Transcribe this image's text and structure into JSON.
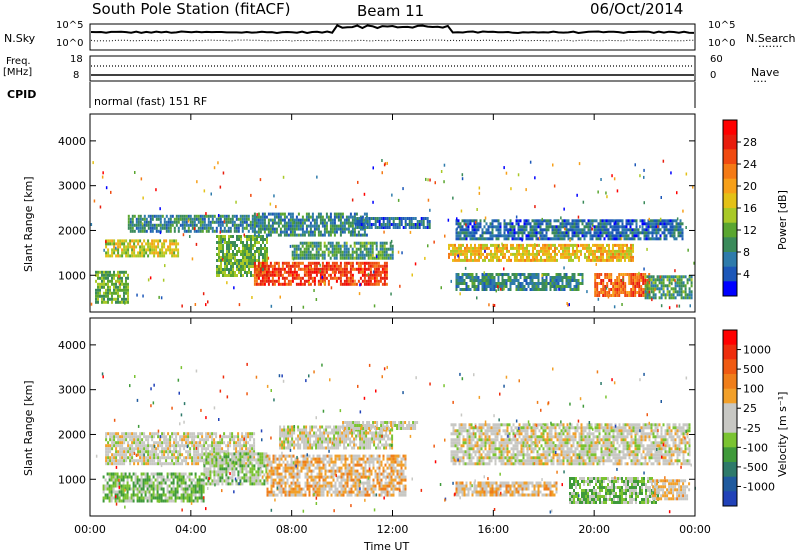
{
  "header": {
    "station": "South Pole Station (fitACF)",
    "beam": "Beam 11",
    "date": "06/Oct/2014"
  },
  "top_panels": {
    "nsky_label": "N.Sky",
    "nsearch_label": "N.Search",
    "nsearch_marker": "·······",
    "freq_label_line1": "Freq.",
    "freq_label_line2": "[MHz]",
    "cpid_label": "CPID",
    "nave_label": "Nave",
    "nave_marker": "····",
    "cpid_text": "normal (fast) 151 RF",
    "left_ticks_noise": [
      "10^5",
      "10^0"
    ],
    "right_ticks_noise": [
      "10^5",
      "10^0"
    ],
    "left_ticks_freq": [
      "18",
      "8"
    ],
    "right_ticks_nave": [
      "60",
      "0"
    ]
  },
  "chart_data": [
    {
      "type": "heatmap",
      "name": "power",
      "xlabel": "",
      "ylabel": "Slant Range [km]",
      "xlim": [
        0,
        24
      ],
      "ylim": [
        180,
        4600
      ],
      "y_ticks": [
        "1000",
        "2000",
        "3000",
        "4000"
      ],
      "colorbar": {
        "label": "Power [dB]",
        "ticks": [
          "4",
          "8",
          "12",
          "16",
          "20",
          "24",
          "28"
        ],
        "colors": [
          "#0000ff",
          "#1c57b8",
          "#2e7bab",
          "#3a8a5a",
          "#5aa630",
          "#a9c927",
          "#e3c117",
          "#f7a019",
          "#f47a15",
          "#f04a10",
          "#e81d0d",
          "#ff0000"
        ]
      },
      "bands": [
        {
          "t0": 0.6,
          "t1": 3.5,
          "r0": 1450,
          "r1": 1800,
          "value": 16
        },
        {
          "t0": 1.5,
          "t1": 6.5,
          "r0": 2000,
          "r1": 2350,
          "value": 8
        },
        {
          "t0": 5.0,
          "t1": 7.0,
          "r0": 1000,
          "r1": 1900,
          "value": 12
        },
        {
          "t0": 6.5,
          "t1": 11.8,
          "r0": 800,
          "r1": 1300,
          "value": 26
        },
        {
          "t0": 6.5,
          "t1": 11.0,
          "r0": 1900,
          "r1": 2400,
          "value": 8
        },
        {
          "t0": 8.0,
          "t1": 12.0,
          "r0": 1400,
          "r1": 1750,
          "value": 10
        },
        {
          "t0": 10.5,
          "t1": 13.5,
          "r0": 2050,
          "r1": 2300,
          "value": 6
        },
        {
          "t0": 14.2,
          "t1": 21.5,
          "r0": 1300,
          "r1": 1700,
          "value": 18
        },
        {
          "t0": 14.5,
          "t1": 23.5,
          "r0": 1800,
          "r1": 2250,
          "value": 6
        },
        {
          "t0": 14.5,
          "t1": 19.5,
          "r0": 650,
          "r1": 1050,
          "value": 8
        },
        {
          "t0": 20.0,
          "t1": 22.2,
          "r0": 550,
          "r1": 1050,
          "value": 24
        },
        {
          "t0": 22.0,
          "t1": 23.9,
          "r0": 500,
          "r1": 1000,
          "value": 10
        },
        {
          "t0": 0.2,
          "t1": 1.5,
          "r0": 400,
          "r1": 1100,
          "value": 12
        }
      ]
    },
    {
      "type": "heatmap",
      "name": "velocity",
      "xlabel": "Time UT",
      "ylabel": "Slant Range [km]",
      "xlim": [
        0,
        24
      ],
      "ylim": [
        180,
        4600
      ],
      "x_ticks": [
        "00:00",
        "04:00",
        "08:00",
        "12:00",
        "16:00",
        "20:00",
        "00:00"
      ],
      "y_ticks": [
        "1000",
        "2000",
        "3000",
        "4000"
      ],
      "colorbar": {
        "label": "Velocity [m s⁻¹]",
        "ticks": [
          "1000",
          "500",
          "100",
          "25",
          "-25",
          "-100",
          "-500",
          "-1000"
        ],
        "colors": [
          "#2142b8",
          "#1f5a9e",
          "#2e7a6a",
          "#3f9a3a",
          "#7ac331",
          "#c8c8c4",
          "#c8c8c4",
          "#f2a02a",
          "#ef7e1a",
          "#ef5a12",
          "#ee2d0c",
          "#ff0000"
        ]
      },
      "bands": [
        {
          "t0": 0.6,
          "t1": 6.5,
          "r0": 1350,
          "r1": 2050,
          "value": 0
        },
        {
          "t0": 0.5,
          "t1": 4.5,
          "r0": 500,
          "r1": 1150,
          "value": -300
        },
        {
          "t0": 4.5,
          "t1": 7.0,
          "r0": 900,
          "r1": 1600,
          "value": -200
        },
        {
          "t0": 7.0,
          "t1": 12.5,
          "r0": 650,
          "r1": 1550,
          "value": 200
        },
        {
          "t0": 7.5,
          "t1": 12.0,
          "r0": 1700,
          "r1": 2200,
          "value": 0
        },
        {
          "t0": 10.0,
          "t1": 13.0,
          "r0": 2100,
          "r1": 2300,
          "value": 0
        },
        {
          "t0": 14.3,
          "t1": 23.8,
          "r0": 1350,
          "r1": 2250,
          "value": 0
        },
        {
          "t0": 14.5,
          "t1": 18.5,
          "r0": 650,
          "r1": 950,
          "value": 150
        },
        {
          "t0": 19.0,
          "t1": 22.5,
          "r0": 500,
          "r1": 1050,
          "value": -300
        },
        {
          "t0": 22.3,
          "t1": 23.8,
          "r0": 550,
          "r1": 1000,
          "value": 150
        }
      ]
    }
  ]
}
